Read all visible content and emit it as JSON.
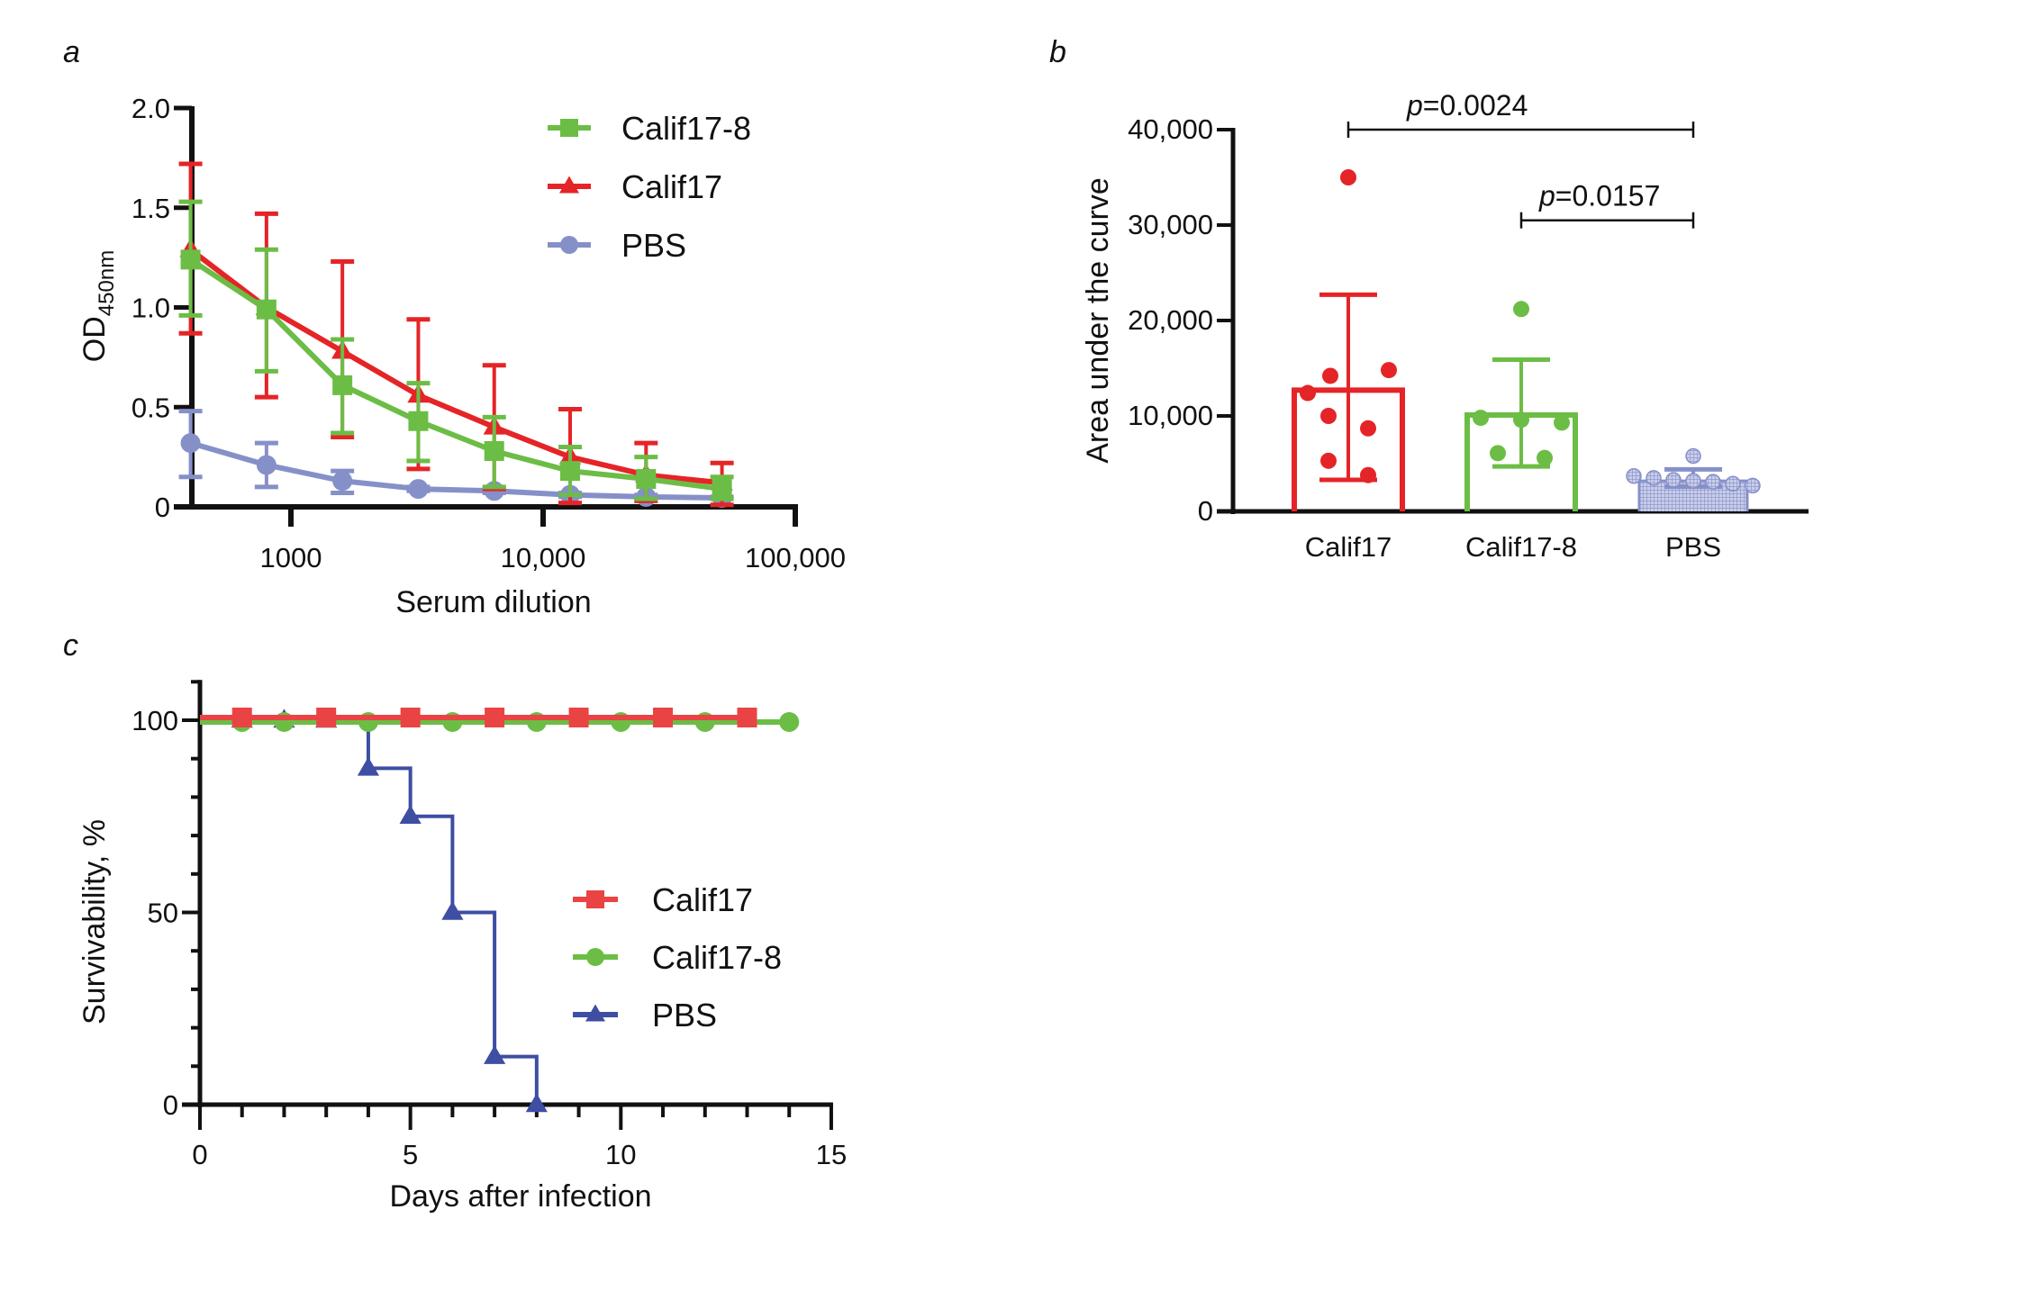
{
  "page": {
    "top_text_fragment": "",
    "panel_labels": [
      "a",
      "b",
      "c"
    ]
  },
  "colors": {
    "calif17": "#e52427",
    "calif17_8": "#6cbd45",
    "pbs_a": "#8690c8",
    "pbs_c": "#3d4ea3",
    "calif17_c": "#ea4344",
    "axis": "#111111"
  },
  "chart_data": [
    {
      "id": "a",
      "type": "line",
      "title": "",
      "xlabel": "Serum dilution",
      "ylabel": "OD",
      "ylabel_subscript": "450nm",
      "xscale": "log",
      "xlim": [
        400,
        100000
      ],
      "ylim": [
        0,
        2.0
      ],
      "yticks": [
        0,
        0.5,
        1.0,
        1.5,
        2.0
      ],
      "ytick_labels": [
        "0",
        "0.5",
        "1.0",
        "1.5",
        "2.0"
      ],
      "xticks": [
        1000,
        10000,
        100000
      ],
      "xtick_labels": [
        "1000",
        "10,000",
        "100,000"
      ],
      "grid": false,
      "legend_position": "top-right",
      "x": [
        400,
        800,
        1600,
        3200,
        6400,
        12800,
        25600,
        51200
      ],
      "series": [
        {
          "name": "Calif17-8",
          "color_key": "calif17_8",
          "marker": "square",
          "values": [
            1.24,
            0.99,
            0.61,
            0.43,
            0.28,
            0.18,
            0.14,
            0.09
          ],
          "err_upper": [
            1.53,
            1.29,
            0.84,
            0.62,
            0.45,
            0.3,
            0.25,
            0.15
          ],
          "err_lower": [
            0.96,
            0.68,
            0.37,
            0.23,
            0.1,
            0.06,
            0.04,
            0.04
          ]
        },
        {
          "name": "Calif17",
          "color_key": "calif17",
          "marker": "triangle",
          "values": [
            1.29,
            1.0,
            0.78,
            0.56,
            0.4,
            0.25,
            0.16,
            0.12
          ],
          "err_upper": [
            1.72,
            1.47,
            1.23,
            0.94,
            0.71,
            0.49,
            0.32,
            0.22
          ],
          "err_lower": [
            0.87,
            0.55,
            0.35,
            0.19,
            0.09,
            0.02,
            0.03,
            0.01
          ]
        },
        {
          "name": "PBS",
          "color_key": "pbs_a",
          "marker": "circle",
          "values": [
            0.32,
            0.21,
            0.13,
            0.09,
            0.08,
            0.06,
            0.05,
            0.045
          ],
          "err_upper": [
            0.48,
            0.32,
            0.18,
            0.1,
            0.09,
            0.07,
            0.06,
            0.05
          ],
          "err_lower": [
            0.15,
            0.1,
            0.07,
            0.08,
            0.07,
            0.05,
            0.04,
            0.04
          ]
        }
      ]
    },
    {
      "id": "b",
      "type": "bar",
      "title": "",
      "xlabel": "",
      "ylabel": "Area under the curve",
      "ylim": [
        0,
        40000
      ],
      "yticks": [
        0,
        10000,
        20000,
        30000,
        40000
      ],
      "ytick_labels": [
        "0",
        "10,000",
        "20,000",
        "30,000",
        "40,000"
      ],
      "grid": false,
      "categories": [
        "Calif17",
        "Calif17-8",
        "PBS"
      ],
      "bar_style": "outlined",
      "series": [
        {
          "name": "Calif17",
          "color_key": "calif17",
          "mean": 12700,
          "err_upper": 22700,
          "err_lower": 3300,
          "points": [
            35000,
            14800,
            14200,
            12400,
            10000,
            8700,
            5300,
            3800
          ]
        },
        {
          "name": "Calif17-8",
          "color_key": "calif17_8",
          "mean": 10100,
          "err_upper": 15900,
          "err_lower": 4700,
          "points": [
            21200,
            9800,
            9600,
            9300,
            6100,
            5600
          ]
        },
        {
          "name": "PBS",
          "color_key": "pbs_a",
          "mean": 3200,
          "err_upper": 4400,
          "err_lower": 2600,
          "points": [
            5800,
            3700,
            3500,
            3300,
            3200,
            3100,
            2900,
            2700
          ]
        }
      ],
      "annotations": [
        {
          "text_prefix": "p",
          "text_value": "=0.0024",
          "from": "Calif17",
          "to": "PBS",
          "level": 40000
        },
        {
          "text_prefix": "p",
          "text_value": "=0.0157",
          "from": "Calif17-8",
          "to": "PBS",
          "level": 30500
        }
      ]
    },
    {
      "id": "c",
      "type": "line",
      "subtype": "survival-step",
      "title": "",
      "xlabel": "Days after infection",
      "ylabel": "Survivability, %",
      "xlim": [
        0,
        15
      ],
      "ylim": [
        0,
        110
      ],
      "xticks": [
        0,
        5,
        10,
        15
      ],
      "xtick_labels": [
        "0",
        "5",
        "10",
        "15"
      ],
      "yticks": [
        0,
        50,
        100
      ],
      "ytick_labels": [
        "0",
        "50",
        "100"
      ],
      "grid": false,
      "legend_position": "center-right",
      "series": [
        {
          "name": "Calif17",
          "color_key": "calif17_c",
          "marker": "square",
          "steps_x": [
            0,
            13
          ],
          "steps_y": [
            100,
            100
          ],
          "marker_x": [
            1,
            3,
            5,
            7,
            9,
            11,
            13
          ],
          "marker_y": [
            100,
            100,
            100,
            100,
            100,
            100,
            100
          ]
        },
        {
          "name": "Calif17-8",
          "color_key": "calif17_8",
          "marker": "circle",
          "steps_x": [
            0,
            14
          ],
          "steps_y": [
            100,
            100
          ],
          "marker_x": [
            1,
            2,
            4,
            6,
            8,
            10,
            12,
            14
          ],
          "marker_y": [
            100,
            100,
            100,
            100,
            100,
            100,
            100,
            100
          ]
        },
        {
          "name": "PBS",
          "color_key": "pbs_c",
          "marker": "triangle",
          "steps_x": [
            0,
            4,
            5,
            6,
            7,
            8
          ],
          "steps_y": [
            100,
            87.5,
            75,
            50,
            12.5,
            0
          ],
          "marker_x": [
            1,
            2,
            3,
            4,
            5,
            6,
            7,
            8
          ],
          "marker_y": [
            100,
            100,
            100,
            87.5,
            75,
            50,
            12.5,
            0
          ]
        }
      ]
    }
  ]
}
